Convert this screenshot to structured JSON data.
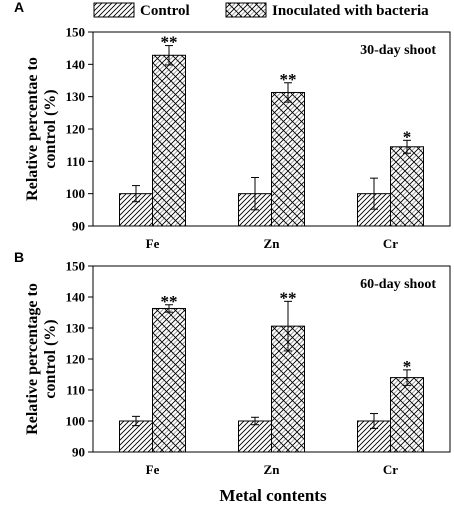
{
  "legend": {
    "control_label": "Control",
    "inoculated_label": "Inoculated with bacteria"
  },
  "x_axis_title": "Metal contents",
  "colors": {
    "axis": "#000000",
    "bar_fill": "#ffffff",
    "hatch": "#000000"
  },
  "chart_data": [
    {
      "type": "bar",
      "panel_label": "A",
      "title": "30-day shoot",
      "ylabel": "Relative percentae to control (%)",
      "categories": [
        "Fe",
        "Zn",
        "Cr"
      ],
      "ylim": [
        90,
        150
      ],
      "yticks": [
        90,
        100,
        110,
        120,
        130,
        140,
        150
      ],
      "series": [
        {
          "name": "Control",
          "values": [
            100,
            100,
            100
          ],
          "errors": [
            2.5,
            5.0,
            4.8
          ]
        },
        {
          "name": "Inoculated with bacteria",
          "values": [
            142.8,
            131.3,
            114.5
          ],
          "errors": [
            3.0,
            3.0,
            2.0
          ],
          "significance": [
            "**",
            "**",
            "*"
          ]
        }
      ]
    },
    {
      "type": "bar",
      "panel_label": "B",
      "title": "60-day shoot",
      "ylabel": "Relative percentage to control (%)",
      "categories": [
        "Fe",
        "Zn",
        "Cr"
      ],
      "ylim": [
        90,
        150
      ],
      "yticks": [
        90,
        100,
        110,
        120,
        130,
        140,
        150
      ],
      "series": [
        {
          "name": "Control",
          "values": [
            100,
            100,
            100
          ],
          "errors": [
            1.5,
            1.2,
            2.4
          ]
        },
        {
          "name": "Inoculated with bacteria",
          "values": [
            136.3,
            130.6,
            114.0
          ],
          "errors": [
            1.2,
            8.0,
            2.5
          ],
          "significance": [
            "**",
            "**",
            "*"
          ]
        }
      ]
    }
  ]
}
